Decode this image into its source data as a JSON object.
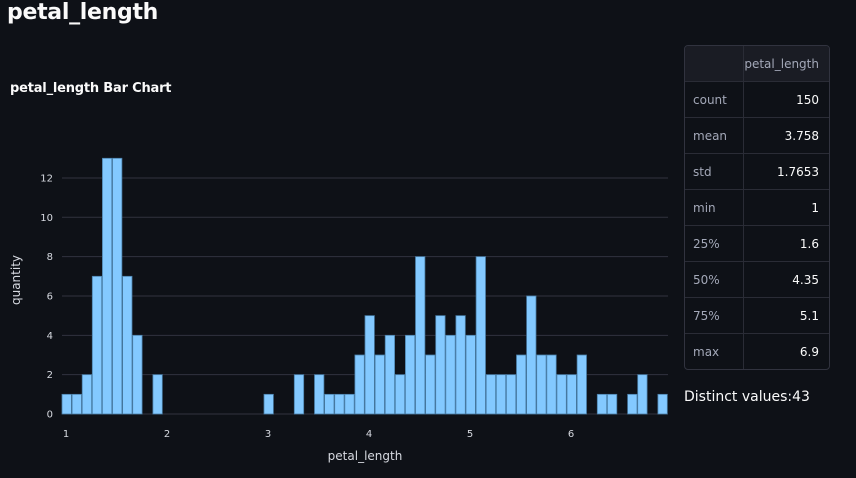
{
  "page": {
    "title": "petal_length"
  },
  "chart": {
    "title": "petal_length Bar Chart",
    "xlabel": "petal_length",
    "ylabel": "quantity"
  },
  "stats": {
    "header": {
      "label": "",
      "column": "petal_length"
    },
    "rows": [
      {
        "label": "count",
        "value": "150"
      },
      {
        "label": "mean",
        "value": "3.758"
      },
      {
        "label": "std",
        "value": "1.7653"
      },
      {
        "label": "min",
        "value": "1"
      },
      {
        "label": "25%",
        "value": "1.6"
      },
      {
        "label": "50%",
        "value": "4.35"
      },
      {
        "label": "75%",
        "value": "5.1"
      },
      {
        "label": "max",
        "value": "6.9"
      }
    ]
  },
  "distinct": {
    "text": "Distinct values:43"
  },
  "colors": {
    "bar": "#83c9ff",
    "bar_outline": "#4a7fa8",
    "background": "#0e1117",
    "grid": "#31333f"
  },
  "chart_data": {
    "type": "bar",
    "title": "petal_length Bar Chart",
    "xlabel": "petal_length",
    "ylabel": "quantity",
    "x": [
      1.0,
      1.1,
      1.2,
      1.3,
      1.4,
      1.5,
      1.6,
      1.7,
      1.9,
      3.0,
      3.3,
      3.5,
      3.6,
      3.7,
      3.8,
      3.9,
      4.0,
      4.1,
      4.2,
      4.3,
      4.4,
      4.5,
      4.6,
      4.7,
      4.8,
      4.9,
      5.0,
      5.1,
      5.2,
      5.3,
      5.4,
      5.5,
      5.6,
      5.7,
      5.8,
      5.9,
      6.0,
      6.1,
      6.3,
      6.4,
      6.6,
      6.7,
      6.9
    ],
    "values": [
      1,
      1,
      2,
      7,
      13,
      13,
      7,
      4,
      2,
      1,
      2,
      2,
      1,
      1,
      1,
      3,
      5,
      3,
      4,
      2,
      4,
      8,
      3,
      5,
      4,
      5,
      4,
      8,
      2,
      2,
      2,
      3,
      6,
      3,
      3,
      2,
      2,
      3,
      1,
      1,
      1,
      2,
      1
    ],
    "xticks": [
      1,
      2,
      3,
      4,
      5,
      6
    ],
    "yticks": [
      0,
      2,
      4,
      6,
      8,
      10,
      12
    ],
    "xlim": [
      0.97,
      6.97
    ],
    "ylim": [
      0,
      13.5
    ],
    "grid": true,
    "legend": false
  }
}
